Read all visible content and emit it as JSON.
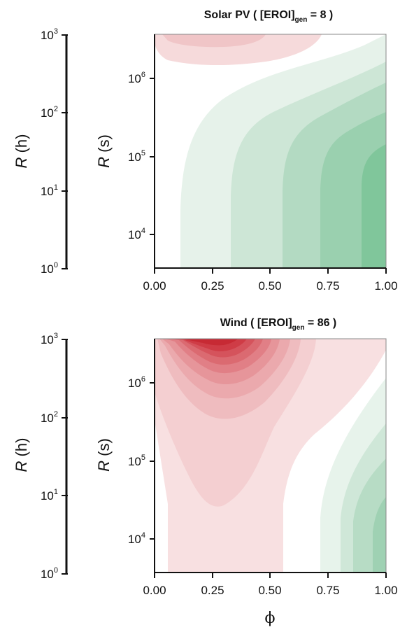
{
  "chart_data": [
    {
      "type": "contour",
      "title": "Solar PV ( [EROI]",
      "title_sub": "gen",
      "title_end": " = 8 )",
      "xlabel": "ϕ",
      "ylabel": "R",
      "ylabel_unit": "(s)",
      "secondary_ylabel": "R",
      "secondary_ylabel_unit": "(h)",
      "xlim": [
        0,
        1
      ],
      "x_ticks": [
        "0.00",
        "0.25",
        "0.50",
        "0.75",
        "1.00"
      ],
      "y_scale": "log",
      "y_ticks": [
        {
          "base": "10",
          "exp": "4"
        },
        {
          "base": "10",
          "exp": "5"
        },
        {
          "base": "10",
          "exp": "6"
        }
      ],
      "secondary_y_ticks": [
        {
          "base": "10",
          "exp": "0"
        },
        {
          "base": "10",
          "exp": "1"
        },
        {
          "base": "10",
          "exp": "2"
        },
        {
          "base": "10",
          "exp": "3"
        }
      ],
      "levels_note": "green bands to the right (positive), red bands near top-left (negative)",
      "colors": {
        "positive": "#4caf73",
        "negative": "#cc1f2a"
      }
    },
    {
      "type": "contour",
      "title": "Wind ( [EROI]",
      "title_sub": "gen",
      "title_end": " = 86 )",
      "xlabel": "ϕ",
      "ylabel": "R",
      "ylabel_unit": "(s)",
      "secondary_ylabel": "R",
      "secondary_ylabel_unit": "(h)",
      "xlim": [
        0,
        1
      ],
      "x_ticks": [
        "0.00",
        "0.25",
        "0.50",
        "0.75",
        "1.00"
      ],
      "y_scale": "log",
      "y_ticks": [
        {
          "base": "10",
          "exp": "4"
        },
        {
          "base": "10",
          "exp": "5"
        },
        {
          "base": "10",
          "exp": "6"
        }
      ],
      "secondary_y_ticks": [
        {
          "base": "10",
          "exp": "0"
        },
        {
          "base": "10",
          "exp": "1"
        },
        {
          "base": "10",
          "exp": "2"
        },
        {
          "base": "10",
          "exp": "3"
        }
      ],
      "levels_note": "deep red maximum near top-left, green bands at right",
      "colors": {
        "positive": "#4caf73",
        "negative": "#cc1f2a"
      }
    }
  ],
  "xlabel_shared": "ϕ"
}
